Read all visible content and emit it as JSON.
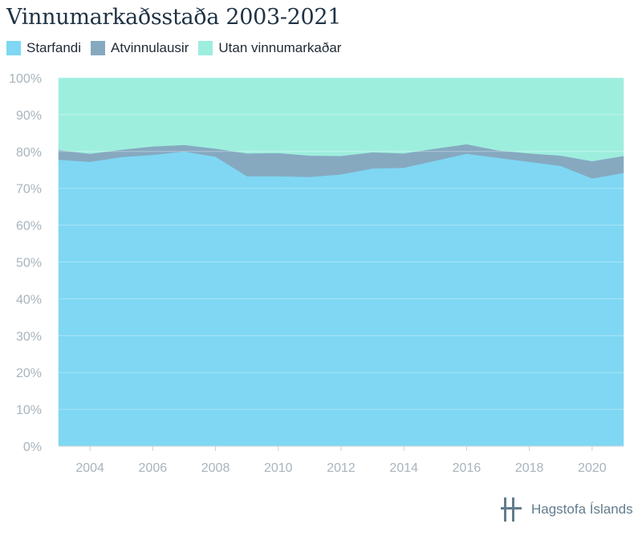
{
  "header": {
    "title": "Vinnumarkaðsstaða 2003-2021"
  },
  "legend": [
    {
      "label": "Starfandi",
      "color": "#7fd7f3"
    },
    {
      "label": "Atvinnulausir",
      "color": "#86a9c0"
    },
    {
      "label": "Utan vinnumarkaðar",
      "color": "#9eeede"
    }
  ],
  "chart_data": {
    "type": "area",
    "stacked": true,
    "x": [
      2003,
      2004,
      2005,
      2006,
      2007,
      2008,
      2009,
      2010,
      2011,
      2012,
      2013,
      2014,
      2015,
      2016,
      2017,
      2018,
      2019,
      2020,
      2021
    ],
    "series": [
      {
        "name": "Starfandi",
        "color": "#7fd7f3",
        "values": [
          77.8,
          77.2,
          78.5,
          79.1,
          80.0,
          78.6,
          73.3,
          73.3,
          73.1,
          73.8,
          75.4,
          75.6,
          77.5,
          79.4,
          78.3,
          77.2,
          76.1,
          72.7,
          74.2
        ]
      },
      {
        "name": "Atvinnulausir",
        "color": "#86a9c0",
        "values": [
          2.6,
          2.2,
          2.0,
          2.3,
          1.8,
          2.2,
          6.2,
          6.3,
          5.8,
          5.0,
          4.4,
          3.9,
          3.3,
          2.6,
          2.0,
          2.3,
          2.8,
          4.7,
          4.6
        ]
      },
      {
        "name": "Utan vinnumarkaðar",
        "color": "#9eeede",
        "values": [
          19.6,
          20.6,
          19.5,
          18.6,
          18.2,
          19.2,
          20.5,
          20.4,
          21.1,
          21.2,
          20.2,
          20.5,
          19.2,
          18.0,
          19.7,
          20.5,
          21.1,
          22.6,
          21.2
        ]
      }
    ],
    "yticks": [
      "0%",
      "10%",
      "20%",
      "30%",
      "40%",
      "50%",
      "60%",
      "70%",
      "80%",
      "90%",
      "100%"
    ],
    "xticks": [
      "2004",
      "2006",
      "2008",
      "2010",
      "2012",
      "2014",
      "2016",
      "2018",
      "2020"
    ],
    "ylim": [
      0,
      100
    ],
    "grid": true,
    "legend_position": "top-left"
  },
  "footer": {
    "logo_text": "Hagstofa Íslands",
    "logo_color": "#627c8c"
  }
}
